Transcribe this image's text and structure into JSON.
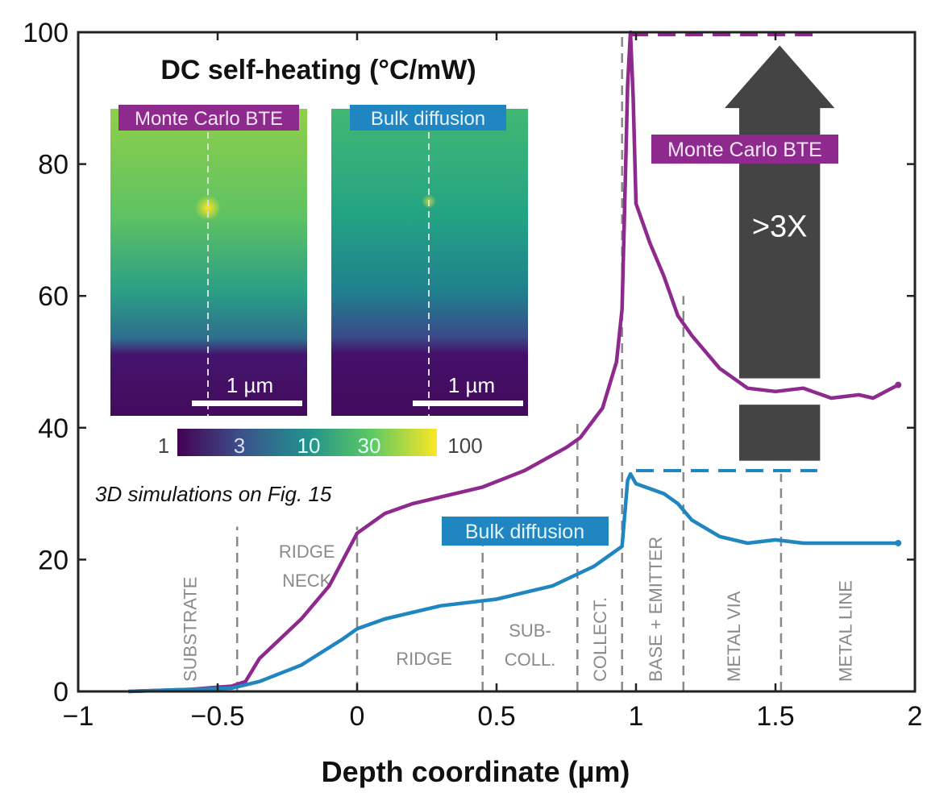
{
  "chart_data": {
    "type": "line",
    "xlabel": "Depth coordinate (µm)",
    "ylabel": "",
    "xlim": [
      -1,
      2
    ],
    "ylim": [
      0,
      100
    ],
    "xticks": [
      -1,
      -0.5,
      0,
      0.5,
      1,
      1.5,
      2
    ],
    "xtick_labels": [
      "−1",
      "−0.5",
      "0",
      "0.5",
      "1",
      "1.5",
      "2"
    ],
    "yticks": [
      0,
      20,
      40,
      60,
      80,
      100
    ],
    "ytick_labels": [
      "0",
      "20",
      "40",
      "60",
      "80",
      "100"
    ],
    "grid": false,
    "series": [
      {
        "name": "Monte Carlo BTE",
        "color": "#8e2a8e",
        "x": [
          -0.82,
          -0.6,
          -0.45,
          -0.4,
          -0.35,
          -0.2,
          -0.1,
          0,
          0.1,
          0.2,
          0.3,
          0.45,
          0.6,
          0.75,
          0.8,
          0.88,
          0.93,
          0.95,
          0.96,
          0.97,
          0.98,
          0.99,
          1.0,
          1.05,
          1.1,
          1.15,
          1.2,
          1.3,
          1.4,
          1.5,
          1.6,
          1.7,
          1.8,
          1.85,
          1.94
        ],
        "y": [
          0,
          0.3,
          0.8,
          1.5,
          5,
          11,
          16,
          24,
          27,
          28.5,
          29.5,
          31,
          33.5,
          37,
          38.5,
          43,
          50,
          58,
          75,
          92,
          100,
          90,
          74,
          68,
          63,
          57,
          54,
          49,
          46,
          45.5,
          46,
          44.5,
          45,
          44.5,
          46.5
        ]
      },
      {
        "name": "Bulk diffusion",
        "color": "#1f86c2",
        "x": [
          -0.82,
          -0.45,
          -0.35,
          -0.2,
          -0.05,
          0,
          0.1,
          0.3,
          0.5,
          0.7,
          0.85,
          0.95,
          0.97,
          0.98,
          1.0,
          1.1,
          1.15,
          1.2,
          1.3,
          1.4,
          1.5,
          1.6,
          1.7,
          1.8,
          1.94
        ],
        "y": [
          0,
          0.5,
          1.5,
          4,
          8,
          9.5,
          11,
          13,
          14,
          16,
          19,
          22,
          32,
          33,
          31.5,
          30,
          28.5,
          26,
          23.5,
          22.5,
          23,
          22.5,
          22.5,
          22.5,
          22.5
        ]
      }
    ],
    "region_boundaries": [
      -0.43,
      0,
      0.45,
      0.79,
      0.95,
      1.17,
      1.52
    ],
    "regions": [
      {
        "label": "SUBSTRATE",
        "x": -0.6,
        "rotated": true
      },
      {
        "label": "RIDGE",
        "x": -0.18,
        "rotated": false,
        "line2": "NECK"
      },
      {
        "label": "RIDGE",
        "x": 0.24,
        "rotated": false
      },
      {
        "label": "SUB-",
        "x": 0.62,
        "rotated": false,
        "line2": "COLL."
      },
      {
        "label": "COLLECT.",
        "x": 0.87,
        "rotated": true
      },
      {
        "label": "BASE + EMITTER",
        "x": 1.07,
        "rotated": true
      },
      {
        "label": "METAL VIA",
        "x": 1.35,
        "rotated": true
      },
      {
        "label": "METAL LINE",
        "x": 1.75,
        "rotated": true
      }
    ],
    "peak_reference_lines": [
      {
        "series": "Monte Carlo BTE",
        "y": 100,
        "x": [
          0.98,
          1.65
        ]
      },
      {
        "series": "Bulk diffusion",
        "y": 33.5,
        "x": [
          1.0,
          1.65
        ]
      }
    ],
    "annotations": {
      "ratio": ">3X",
      "mc_label": "Monte Carlo BTE",
      "bulk_label": "Bulk diffusion"
    },
    "inset": {
      "title": "DC self-heating (°C/mW)",
      "panels": [
        "Monte Carlo BTE",
        "Bulk diffusion"
      ],
      "scalebar": "1 µm",
      "colorbar_ticks": [
        "1",
        "3",
        "10",
        "30",
        "100"
      ],
      "caption": "3D simulations on Fig. 15"
    }
  }
}
